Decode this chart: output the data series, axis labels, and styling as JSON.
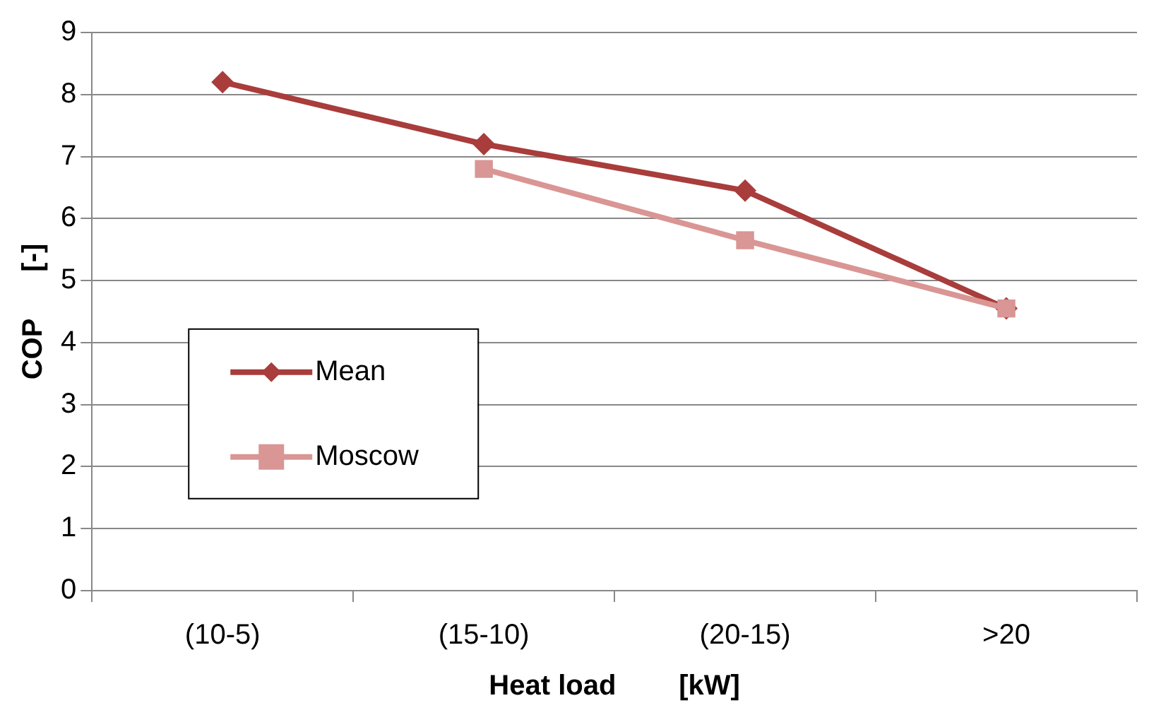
{
  "chart_data": {
    "type": "line",
    "xlabel": "Heat load        [kW]",
    "ylabel": "COP      [-]",
    "categories": [
      "(10-5)",
      "(15-10)",
      "(20-15)",
      ">20"
    ],
    "series": [
      {
        "name": "Mean",
        "color": "#a83d3b",
        "marker": "diamond",
        "values": [
          8.2,
          7.2,
          6.45,
          4.55
        ]
      },
      {
        "name": "Moscow",
        "color": "#d99694",
        "marker": "square",
        "values": [
          null,
          6.8,
          5.65,
          4.55
        ]
      }
    ],
    "ylim": [
      0,
      9
    ],
    "yticks": [
      0,
      1,
      2,
      3,
      4,
      5,
      6,
      7,
      8,
      9
    ],
    "grid": "y",
    "legend": "left",
    "line_style": "solid"
  }
}
